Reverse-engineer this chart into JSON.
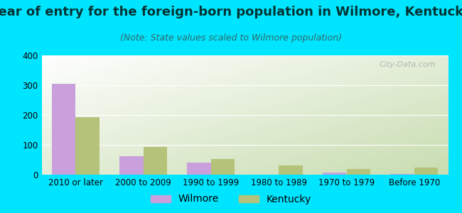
{
  "title": "Year of entry for the foreign-born population in Wilmore, Kentucky",
  "subtitle": "(Note: State values scaled to Wilmore population)",
  "categories": [
    "2010 or later",
    "2000 to 2009",
    "1990 to 1999",
    "1980 to 1989",
    "1970 to 1979",
    "Before 1970"
  ],
  "wilmore_values": [
    305,
    62,
    40,
    0,
    8,
    2
  ],
  "kentucky_values": [
    193,
    93,
    53,
    30,
    18,
    25
  ],
  "wilmore_color": "#c9a0dc",
  "kentucky_color": "#b5c27a",
  "background_outer": "#00e5ff",
  "gradient_top_left": "#ffffff",
  "gradient_bottom_right": "#c8ddb0",
  "ylim": [
    0,
    400
  ],
  "yticks": [
    0,
    100,
    200,
    300,
    400
  ],
  "title_fontsize": 13,
  "subtitle_fontsize": 9,
  "tick_fontsize": 8.5,
  "legend_fontsize": 10,
  "bar_width": 0.35,
  "watermark": "City-Data.com"
}
